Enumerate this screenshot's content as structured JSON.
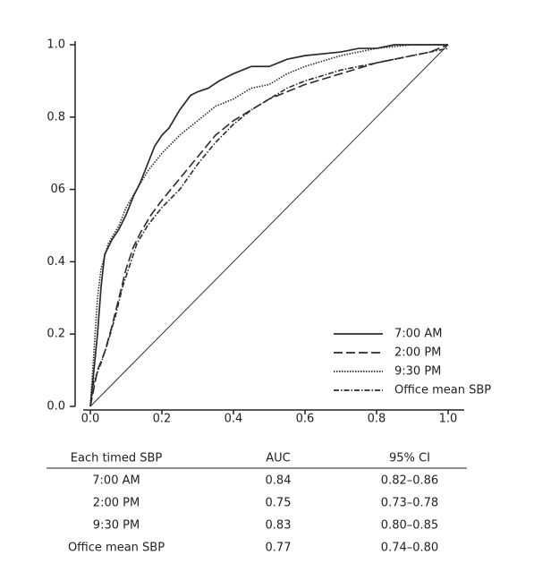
{
  "chart_data": {
    "type": "line",
    "xlim": [
      0,
      1
    ],
    "ylim": [
      0,
      1
    ],
    "xticks": [
      {
        "value": 0,
        "label": "0.0"
      },
      0.2,
      0.4,
      0.6,
      0.8,
      {
        "value": 1,
        "label": "1.0"
      }
    ],
    "yticks": [
      {
        "value": 0,
        "label": "0.0"
      },
      0.2,
      0.4,
      {
        "value": 0.6,
        "label": "06"
      },
      0.8,
      {
        "value": 1,
        "label": "1.0"
      }
    ],
    "reference_diagonal": true,
    "legend": "lower right",
    "series": [
      {
        "name": "7:00 AM",
        "color": "#2b2b2b",
        "line_style": "solid",
        "x": [
          0,
          0.01,
          0.02,
          0.03,
          0.04,
          0.06,
          0.08,
          0.1,
          0.12,
          0.14,
          0.16,
          0.18,
          0.2,
          0.22,
          0.25,
          0.28,
          0.3,
          0.33,
          0.36,
          0.4,
          0.45,
          0.5,
          0.55,
          0.6,
          0.7,
          0.75,
          0.8,
          0.85,
          1
        ],
        "values": [
          0,
          0.1,
          0.2,
          0.33,
          0.42,
          0.46,
          0.49,
          0.53,
          0.58,
          0.62,
          0.67,
          0.72,
          0.75,
          0.77,
          0.82,
          0.86,
          0.87,
          0.88,
          0.9,
          0.92,
          0.94,
          0.94,
          0.96,
          0.97,
          0.98,
          0.99,
          0.99,
          1,
          1
        ]
      },
      {
        "name": "2:00 PM",
        "color": "#2b2b2b",
        "line_style": "dashed",
        "x": [
          0,
          0.02,
          0.04,
          0.06,
          0.08,
          0.1,
          0.12,
          0.14,
          0.17,
          0.2,
          0.25,
          0.3,
          0.35,
          0.4,
          0.45,
          0.5,
          0.55,
          0.6,
          0.7,
          0.8,
          0.9,
          0.95,
          1
        ],
        "values": [
          0,
          0.1,
          0.15,
          0.22,
          0.3,
          0.38,
          0.44,
          0.48,
          0.53,
          0.57,
          0.63,
          0.69,
          0.75,
          0.79,
          0.82,
          0.85,
          0.87,
          0.89,
          0.92,
          0.95,
          0.97,
          0.98,
          1
        ]
      },
      {
        "name": "9:30 PM",
        "color": "#2b2b2b",
        "line_style": "dotted",
        "x": [
          0,
          0.01,
          0.02,
          0.03,
          0.05,
          0.08,
          0.1,
          0.13,
          0.16,
          0.2,
          0.25,
          0.3,
          0.35,
          0.4,
          0.45,
          0.5,
          0.55,
          0.6,
          0.7,
          0.8,
          0.9,
          1
        ],
        "values": [
          0,
          0.15,
          0.3,
          0.38,
          0.45,
          0.5,
          0.55,
          0.6,
          0.65,
          0.7,
          0.75,
          0.79,
          0.83,
          0.85,
          0.88,
          0.89,
          0.92,
          0.94,
          0.97,
          0.99,
          1,
          1
        ]
      },
      {
        "name": "Office mean SBP",
        "color": "#2b2b2b",
        "line_style": "dashdot",
        "x": [
          0,
          0.01,
          0.03,
          0.05,
          0.07,
          0.09,
          0.11,
          0.13,
          0.16,
          0.2,
          0.25,
          0.3,
          0.35,
          0.4,
          0.45,
          0.5,
          0.55,
          0.6,
          0.7,
          0.8,
          0.9,
          1
        ],
        "values": [
          0,
          0.07,
          0.12,
          0.18,
          0.25,
          0.33,
          0.39,
          0.45,
          0.5,
          0.55,
          0.6,
          0.67,
          0.73,
          0.78,
          0.82,
          0.85,
          0.88,
          0.9,
          0.93,
          0.95,
          0.97,
          0.99
        ]
      }
    ]
  },
  "table": {
    "columns": [
      "Each timed SBP",
      "AUC",
      "95% CI"
    ],
    "rows": [
      [
        "7:00 AM",
        "0.84",
        "0.82–0.86"
      ],
      [
        "2:00 PM",
        "0.75",
        "0.73–0.78"
      ],
      [
        "9:30 PM",
        "0.83",
        "0.80–0.85"
      ],
      [
        "Office mean SBP",
        "0.77",
        "0.74–0.80"
      ]
    ]
  }
}
